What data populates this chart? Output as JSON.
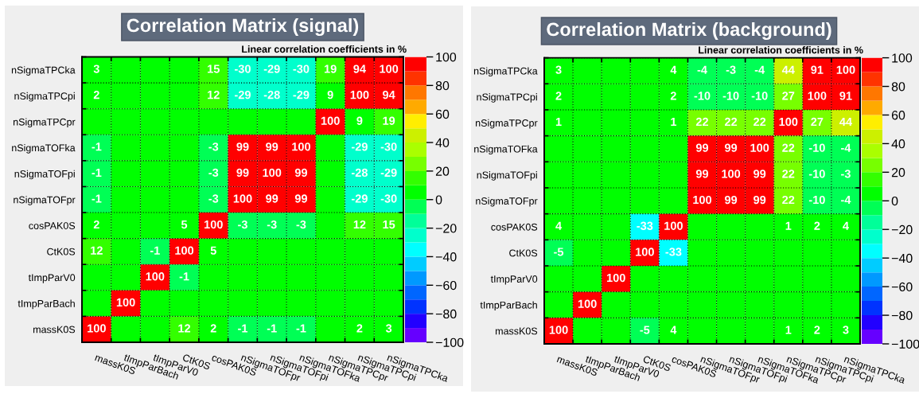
{
  "chart_data": [
    {
      "type": "heatmap",
      "title": "Correlation Matrix (signal)",
      "subtitle": "Linear correlation coefficients in %",
      "categories": [
        "massK0S",
        "tImpParBach",
        "tImpParV0",
        "CtK0S",
        "cosPAK0S",
        "nSigmaTOFpr",
        "nSigmaTOFpi",
        "nSigmaTOFka",
        "nSigmaTPCpr",
        "nSigmaTPCpi",
        "nSigmaTPCka"
      ],
      "y_categories": [
        "nSigmaTPCka",
        "nSigmaTPCpi",
        "nSigmaTPCpr",
        "nSigmaTOFka",
        "nSigmaTOFpi",
        "nSigmaTOFpr",
        "cosPAK0S",
        "CtK0S",
        "tImpParV0",
        "tImpParBach",
        "massK0S"
      ],
      "cells": [
        [
          3,
          0,
          0,
          0,
          15,
          -30,
          -29,
          -30,
          19,
          94,
          100
        ],
        [
          2,
          0,
          0,
          0,
          12,
          -29,
          -28,
          -29,
          9,
          100,
          94
        ],
        [
          0,
          0,
          0,
          0,
          0,
          0,
          0,
          0,
          100,
          9,
          19
        ],
        [
          -1,
          0,
          0,
          0,
          -3,
          99,
          99,
          100,
          0,
          -29,
          -30
        ],
        [
          -1,
          0,
          0,
          0,
          -3,
          99,
          100,
          99,
          0,
          -28,
          -29
        ],
        [
          -1,
          0,
          0,
          0,
          -3,
          100,
          99,
          99,
          0,
          -29,
          -30
        ],
        [
          2,
          0,
          0,
          5,
          100,
          -3,
          -3,
          -3,
          0,
          12,
          15
        ],
        [
          12,
          0,
          -1,
          100,
          5,
          0,
          0,
          0,
          0,
          0,
          0
        ],
        [
          0,
          0,
          100,
          -1,
          0,
          0,
          0,
          0,
          0,
          0,
          0
        ],
        [
          0,
          100,
          0,
          0,
          0,
          0,
          0,
          0,
          0,
          0,
          0
        ],
        [
          100,
          0,
          0,
          12,
          2,
          -1,
          -1,
          -1,
          0,
          2,
          3
        ]
      ],
      "cell_labels": [
        [
          "3",
          null,
          null,
          null,
          "15",
          "-30",
          "-29",
          "-30",
          "19",
          "94",
          "100"
        ],
        [
          "2",
          null,
          null,
          null,
          "12",
          "-29",
          "-28",
          "-29",
          "9",
          "100",
          "94"
        ],
        [
          null,
          null,
          null,
          null,
          null,
          null,
          null,
          null,
          "100",
          "9",
          "19"
        ],
        [
          "-1",
          null,
          null,
          null,
          "-3",
          "99",
          "99",
          "100",
          null,
          "-29",
          "-30"
        ],
        [
          "-1",
          null,
          null,
          null,
          "-3",
          "99",
          "100",
          "99",
          null,
          "-28",
          "-29"
        ],
        [
          "-1",
          null,
          null,
          null,
          "-3",
          "100",
          "99",
          "99",
          null,
          "-29",
          "-30"
        ],
        [
          "2",
          null,
          null,
          "5",
          "100",
          "-3",
          "-3",
          "-3",
          null,
          "12",
          "15"
        ],
        [
          "12",
          null,
          "-1",
          "100",
          "5",
          null,
          null,
          null,
          null,
          null,
          null
        ],
        [
          null,
          null,
          "100",
          "-1",
          null,
          null,
          null,
          null,
          null,
          null,
          null
        ],
        [
          null,
          "100",
          null,
          null,
          null,
          null,
          null,
          null,
          null,
          null,
          null
        ],
        [
          "100",
          null,
          null,
          "12",
          "2",
          "-1",
          "-1",
          "-1",
          null,
          "2",
          "3"
        ]
      ],
      "clim": [
        -100,
        100
      ],
      "cticks": [
        -100,
        -80,
        -60,
        -40,
        -20,
        0,
        20,
        40,
        60,
        80,
        100
      ],
      "grid": true
    },
    {
      "type": "heatmap",
      "title": "Correlation Matrix (background)",
      "subtitle": "Linear correlation coefficients in %",
      "categories": [
        "massK0S",
        "tImpParBach",
        "tImpParV0",
        "CtK0S",
        "cosPAK0S",
        "nSigmaTOFpr",
        "nSigmaTOFpi",
        "nSigmaTOFka",
        "nSigmaTPCpr",
        "nSigmaTPCpi",
        "nSigmaTPCka"
      ],
      "y_categories": [
        "nSigmaTPCka",
        "nSigmaTPCpi",
        "nSigmaTPCpr",
        "nSigmaTOFka",
        "nSigmaTOFpi",
        "nSigmaTOFpr",
        "cosPAK0S",
        "CtK0S",
        "tImpParV0",
        "tImpParBach",
        "massK0S"
      ],
      "cells": [
        [
          3,
          0,
          0,
          0,
          4,
          -4,
          -3,
          -4,
          44,
          91,
          100
        ],
        [
          2,
          0,
          0,
          0,
          2,
          -10,
          -10,
          -10,
          27,
          100,
          91
        ],
        [
          1,
          0,
          0,
          0,
          1,
          22,
          22,
          22,
          100,
          27,
          44
        ],
        [
          0,
          0,
          0,
          0,
          0,
          99,
          99,
          100,
          22,
          -10,
          -4
        ],
        [
          0,
          0,
          0,
          0,
          0,
          99,
          100,
          99,
          22,
          -10,
          -3
        ],
        [
          0,
          0,
          0,
          0,
          0,
          100,
          99,
          99,
          22,
          -10,
          -4
        ],
        [
          4,
          0,
          0,
          -33,
          100,
          0,
          0,
          0,
          1,
          2,
          4
        ],
        [
          -5,
          0,
          0,
          100,
          -33,
          0,
          0,
          0,
          0,
          0,
          0
        ],
        [
          0,
          0,
          100,
          0,
          0,
          0,
          0,
          0,
          0,
          0,
          0
        ],
        [
          0,
          100,
          0,
          0,
          0,
          0,
          0,
          0,
          0,
          0,
          0
        ],
        [
          100,
          0,
          0,
          -5,
          4,
          0,
          0,
          0,
          1,
          2,
          3
        ]
      ],
      "cell_labels": [
        [
          "3",
          null,
          null,
          null,
          "4",
          "-4",
          "-3",
          "-4",
          "44",
          "91",
          "100"
        ],
        [
          "2",
          null,
          null,
          null,
          "2",
          "-10",
          "-10",
          "-10",
          "27",
          "100",
          "91"
        ],
        [
          "1",
          null,
          null,
          null,
          "1",
          "22",
          "22",
          "22",
          "100",
          "27",
          "44"
        ],
        [
          null,
          null,
          null,
          null,
          null,
          "99",
          "99",
          "100",
          "22",
          "-10",
          "-4"
        ],
        [
          null,
          null,
          null,
          null,
          null,
          "99",
          "100",
          "99",
          "22",
          "-10",
          "-3"
        ],
        [
          null,
          null,
          null,
          null,
          null,
          "100",
          "99",
          "99",
          "22",
          "-10",
          "-4"
        ],
        [
          "4",
          null,
          null,
          "-33",
          "100",
          null,
          null,
          null,
          "1",
          "2",
          "4"
        ],
        [
          "-5",
          null,
          null,
          "100",
          "-33",
          null,
          null,
          null,
          null,
          null,
          null
        ],
        [
          null,
          null,
          "100",
          null,
          null,
          null,
          null,
          null,
          null,
          null,
          null
        ],
        [
          null,
          "100",
          null,
          null,
          null,
          null,
          null,
          null,
          null,
          null,
          null
        ],
        [
          "100",
          null,
          null,
          "-5",
          "4",
          null,
          null,
          null,
          "1",
          "2",
          "3"
        ]
      ],
      "clim": [
        -100,
        100
      ],
      "cticks": [
        -100,
        -80,
        -60,
        -40,
        -20,
        0,
        20,
        40,
        60,
        80,
        100
      ],
      "grid": true
    }
  ]
}
